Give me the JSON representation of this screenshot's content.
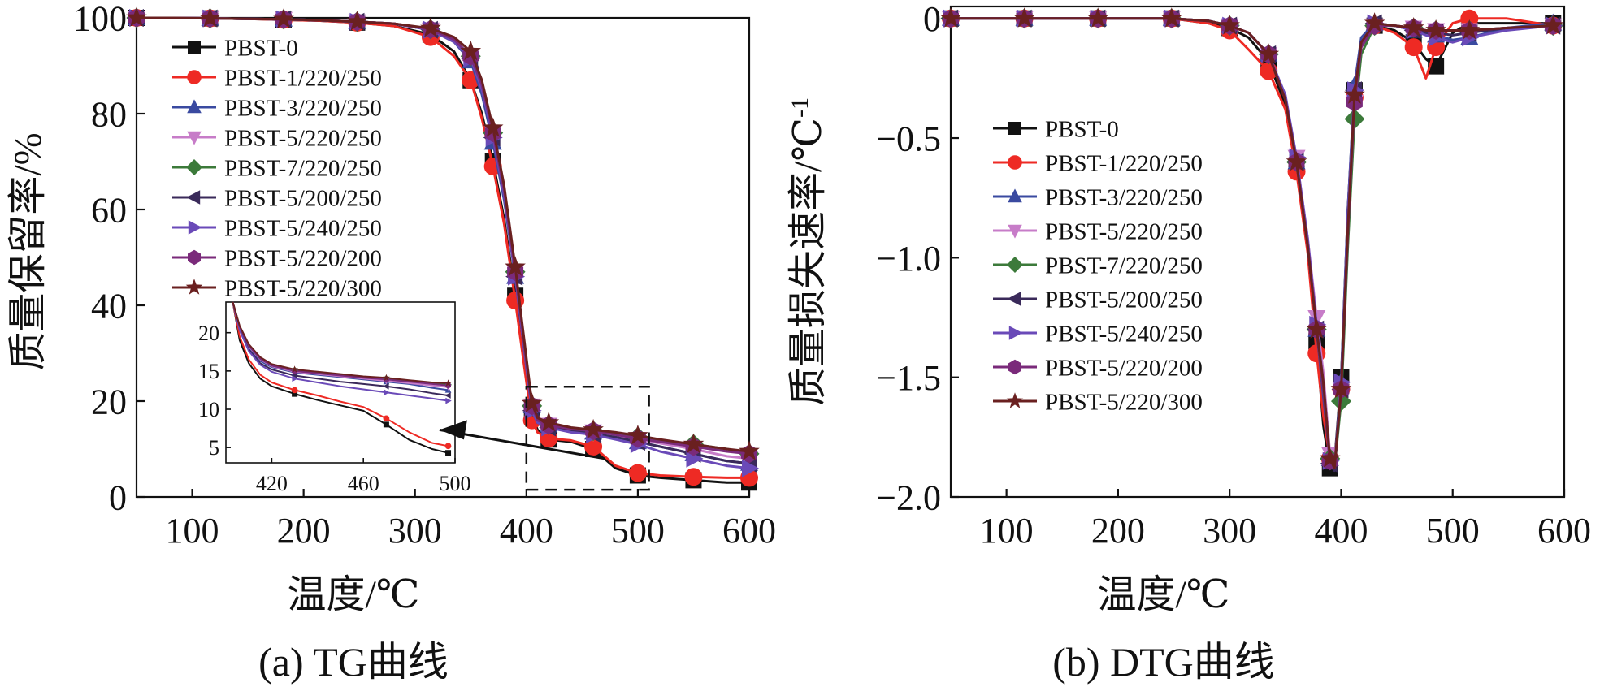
{
  "colors": {
    "PBST-0": "#111111",
    "PBST-1/220/250": "#ee2a24",
    "PBST-3/220/250": "#3a4aa0",
    "PBST-5/220/250": "#c77cc8",
    "PBST-7/220/250": "#3c7a3a",
    "PBST-5/200/250": "#3a2a5a",
    "PBST-5/240/250": "#6a4ab8",
    "PBST-5/220/200": "#7a2a7a",
    "PBST-5/220/300": "#6a2020"
  },
  "markers": {
    "PBST-0": "square",
    "PBST-1/220/250": "circle",
    "PBST-3/220/250": "triangle-up",
    "PBST-5/220/250": "triangle-down",
    "PBST-7/220/250": "diamond",
    "PBST-5/200/250": "triangle-left",
    "PBST-5/240/250": "triangle-right",
    "PBST-5/220/200": "hexagon",
    "PBST-5/220/300": "star"
  },
  "chart_data": [
    {
      "type": "line",
      "caption": "(a) TG曲线",
      "xlabel": "温度/℃",
      "ylabel": "质量保留率/%",
      "xlim": [
        50,
        600
      ],
      "ylim": [
        0,
        100
      ],
      "xticks": [
        100,
        200,
        300,
        400,
        500,
        600
      ],
      "yticks": [
        0,
        20,
        40,
        60,
        80,
        100
      ],
      "legend": "top-left",
      "x": [
        50,
        83,
        116,
        149,
        182,
        215,
        248,
        281,
        314,
        335,
        350,
        360,
        370,
        380,
        390,
        400,
        405,
        410,
        420,
        440,
        460,
        480,
        500,
        520,
        550,
        580,
        600
      ],
      "series": [
        {
          "name": "PBST-0",
          "values": [
            100,
            100,
            99.9,
            99.8,
            99.6,
            99.4,
            99,
            98.3,
            96.5,
            93,
            87,
            80,
            70,
            58,
            42,
            25,
            17,
            14,
            12,
            11.5,
            10,
            6,
            4.5,
            4,
            3.5,
            3,
            3
          ]
        },
        {
          "name": "PBST-1/220/250",
          "values": [
            100,
            100,
            99.9,
            99.8,
            99.6,
            99.4,
            99,
            98.3,
            96,
            92,
            87,
            79,
            69,
            57,
            41,
            24,
            16,
            13.5,
            12.2,
            11.8,
            10.5,
            6.5,
            5,
            4.5,
            4.2,
            4,
            4
          ]
        },
        {
          "name": "PBST-3/220/250",
          "values": [
            100,
            100,
            99.9,
            99.8,
            99.7,
            99.5,
            99.2,
            98.8,
            97.5,
            95,
            91,
            84,
            74,
            62,
            46,
            28,
            19,
            16,
            15,
            14,
            13.5,
            12.5,
            11.5,
            10.5,
            9,
            7.5,
            7
          ]
        },
        {
          "name": "PBST-5/220/250",
          "values": [
            100,
            100,
            99.9,
            99.8,
            99.7,
            99.5,
            99.2,
            98.8,
            97.5,
            95,
            92,
            86,
            76,
            64,
            47,
            28,
            19,
            16,
            15,
            14.2,
            13.6,
            12.8,
            12,
            11.2,
            10,
            8.5,
            8
          ]
        },
        {
          "name": "PBST-7/220/250",
          "values": [
            100,
            100,
            99.9,
            99.8,
            99.7,
            99.5,
            99.2,
            98.8,
            97.6,
            95.5,
            92,
            86,
            76,
            64,
            47,
            28,
            19,
            16,
            15,
            14.2,
            13.8,
            13.2,
            12.5,
            11.8,
            11,
            10,
            9
          ]
        },
        {
          "name": "PBST-5/200/250",
          "values": [
            100,
            100,
            99.9,
            99.8,
            99.7,
            99.5,
            99.2,
            98.8,
            97.5,
            95,
            91.5,
            85,
            75,
            63,
            46,
            27,
            18,
            15.5,
            14.5,
            13.8,
            13.2,
            12.5,
            11.5,
            10.5,
            9,
            7.5,
            7
          ]
        },
        {
          "name": "PBST-5/240/250",
          "values": [
            100,
            100,
            99.9,
            99.8,
            99.7,
            99.5,
            99.2,
            98.8,
            97.5,
            95,
            91.5,
            85,
            75,
            63,
            46,
            27,
            18,
            15.5,
            14.5,
            13.5,
            13,
            12,
            11,
            9.5,
            8,
            6.5,
            6
          ]
        },
        {
          "name": "PBST-5/220/200",
          "values": [
            100,
            100,
            99.9,
            99.8,
            99.7,
            99.5,
            99.2,
            98.8,
            97.6,
            95.5,
            92,
            86,
            76,
            64,
            47,
            28,
            19,
            16,
            15,
            14.2,
            13.8,
            13,
            12.2,
            11.5,
            10.5,
            9.5,
            9
          ]
        },
        {
          "name": "PBST-5/220/300",
          "values": [
            100,
            100,
            99.9,
            99.8,
            99.7,
            99.5,
            99.2,
            98.8,
            97.8,
            96,
            93,
            87,
            77,
            65,
            48,
            29,
            19.5,
            16.5,
            15.5,
            14.5,
            14,
            13.5,
            12.8,
            12,
            11,
            10,
            9.5
          ]
        }
      ],
      "inset": {
        "xlim": [
          400,
          500
        ],
        "ylim": [
          3,
          24
        ],
        "xticks": [
          420,
          460,
          500
        ],
        "yticks": [
          5,
          10,
          15,
          20
        ],
        "x": [
          403,
          406,
          410,
          415,
          420,
          430,
          440,
          450,
          460,
          470,
          480,
          490,
          497
        ],
        "series": [
          {
            "name": "PBST-0",
            "values": [
              24,
              19,
              16,
              14,
              13,
              12,
              11.2,
              10.5,
              9.8,
              8,
              6,
              4.8,
              4.3
            ]
          },
          {
            "name": "PBST-1/220/250",
            "values": [
              24,
              19.5,
              16.5,
              14.5,
              13.5,
              12.5,
              11.8,
              11,
              10.3,
              8.8,
              7,
              5.6,
              5.2
            ]
          },
          {
            "name": "PBST-3/220/250",
            "values": [
              24,
              20.5,
              18,
              16.3,
              15.5,
              14.8,
              14.5,
              14.2,
              13.9,
              13.6,
              13.3,
              12.8,
              12.5
            ]
          },
          {
            "name": "PBST-5/220/250",
            "values": [
              24,
              20.7,
              18.2,
              16.5,
              15.6,
              14.9,
              14.6,
              14.3,
              14,
              13.7,
              13.4,
              13.1,
              12.9
            ]
          },
          {
            "name": "PBST-7/220/250",
            "values": [
              24,
              20.8,
              18.3,
              16.6,
              15.7,
              15.1,
              14.8,
              14.5,
              14.2,
              14,
              13.7,
              13.4,
              13.2
            ]
          },
          {
            "name": "PBST-5/200/250",
            "values": [
              24,
              20.4,
              17.8,
              16,
              15.2,
              14.4,
              14,
              13.6,
              13.3,
              13,
              12.6,
              12.1,
              11.8
            ]
          },
          {
            "name": "PBST-5/240/250",
            "values": [
              24,
              20.3,
              17.6,
              15.8,
              14.9,
              14,
              13.5,
              13,
              12.6,
              12.2,
              11.8,
              11.4,
              11.1
            ]
          },
          {
            "name": "PBST-5/220/200",
            "values": [
              24,
              20.8,
              18.3,
              16.6,
              15.7,
              15,
              14.7,
              14.4,
              14.1,
              13.9,
              13.6,
              13.3,
              13.1
            ]
          },
          {
            "name": "PBST-5/220/300",
            "values": [
              24,
              20.9,
              18.5,
              16.8,
              15.9,
              15.2,
              14.9,
              14.6,
              14.3,
              14.1,
              13.8,
              13.5,
              13.4
            ]
          }
        ]
      }
    },
    {
      "type": "line",
      "caption": "(b) DTG曲线",
      "xlabel": "温度/℃",
      "ylabel": "质量损失速率/℃",
      "ylabel_sup": "-1",
      "xlim": [
        50,
        600
      ],
      "ylim": [
        -2.0,
        0.05
      ],
      "xticks": [
        100,
        200,
        300,
        400,
        500,
        600
      ],
      "yticks": [
        0,
        -0.5,
        -1.0,
        -1.5,
        -2.0
      ],
      "ytick_labels": [
        "0",
        "−0.5",
        "−1.0",
        "−1.5",
        "−2.0"
      ],
      "legend": "left",
      "x": [
        50,
        83,
        116,
        149,
        182,
        215,
        248,
        281,
        300,
        317,
        335,
        350,
        360,
        370,
        378,
        384,
        390,
        394,
        400,
        406,
        412,
        418,
        430,
        448,
        465,
        476,
        485,
        500,
        515,
        548,
        590
      ],
      "series": [
        {
          "name": "PBST-0",
          "values": [
            0,
            0,
            0,
            0,
            0,
            0,
            0,
            -0.02,
            -0.04,
            -0.08,
            -0.18,
            -0.36,
            -0.62,
            -0.95,
            -1.35,
            -1.7,
            -1.88,
            -1.86,
            -1.5,
            -0.8,
            -0.3,
            -0.1,
            -0.03,
            -0.05,
            -0.1,
            -0.17,
            -0.2,
            -0.06,
            -0.02,
            -0.02,
            -0.02
          ]
        },
        {
          "name": "PBST-1/220/250",
          "values": [
            0,
            0,
            0,
            0,
            0,
            0,
            0,
            -0.02,
            -0.05,
            -0.13,
            -0.22,
            -0.38,
            -0.64,
            -0.98,
            -1.4,
            -1.66,
            -1.84,
            -1.86,
            -1.55,
            -0.85,
            -0.33,
            -0.12,
            -0.03,
            -0.06,
            -0.12,
            -0.25,
            -0.12,
            -0.02,
            0,
            0,
            -0.03
          ]
        },
        {
          "name": "PBST-3/220/250",
          "values": [
            0,
            0,
            0,
            0,
            0,
            0,
            0,
            -0.01,
            -0.03,
            -0.06,
            -0.15,
            -0.34,
            -0.6,
            -0.95,
            -1.3,
            -1.58,
            -1.84,
            -1.87,
            -1.52,
            -0.8,
            -0.28,
            -0.08,
            -0.02,
            -0.03,
            -0.05,
            -0.06,
            -0.07,
            -0.09,
            -0.08,
            -0.04,
            -0.02
          ]
        },
        {
          "name": "PBST-5/220/250",
          "values": [
            0,
            0,
            0,
            0,
            0,
            0,
            0,
            -0.01,
            -0.03,
            -0.06,
            -0.15,
            -0.33,
            -0.58,
            -0.92,
            -1.25,
            -1.48,
            -1.82,
            -1.88,
            -1.55,
            -0.85,
            -0.35,
            -0.12,
            -0.03,
            -0.03,
            -0.04,
            -0.05,
            -0.05,
            -0.05,
            -0.05,
            -0.04,
            -0.03
          ]
        },
        {
          "name": "PBST-7/220/250",
          "values": [
            0,
            0,
            0,
            0,
            0,
            0,
            0,
            -0.01,
            -0.03,
            -0.06,
            -0.15,
            -0.34,
            -0.6,
            -0.95,
            -1.3,
            -1.55,
            -1.84,
            -1.88,
            -1.6,
            -0.95,
            -0.42,
            -0.15,
            -0.03,
            -0.03,
            -0.04,
            -0.05,
            -0.05,
            -0.05,
            -0.05,
            -0.04,
            -0.03
          ]
        },
        {
          "name": "PBST-5/200/250",
          "values": [
            0,
            0,
            0,
            0,
            0,
            0,
            0,
            -0.01,
            -0.03,
            -0.06,
            -0.15,
            -0.34,
            -0.6,
            -0.95,
            -1.3,
            -1.55,
            -1.86,
            -1.89,
            -1.55,
            -0.85,
            -0.3,
            -0.1,
            -0.02,
            -0.03,
            -0.05,
            -0.06,
            -0.06,
            -0.07,
            -0.06,
            -0.04,
            -0.03
          ]
        },
        {
          "name": "PBST-5/240/250",
          "values": [
            0,
            0,
            0,
            0,
            0,
            0,
            0,
            -0.01,
            -0.03,
            -0.06,
            -0.15,
            -0.32,
            -0.58,
            -0.92,
            -1.28,
            -1.52,
            -1.85,
            -1.88,
            -1.52,
            -0.82,
            -0.3,
            -0.1,
            -0.02,
            -0.03,
            -0.05,
            -0.07,
            -0.08,
            -0.1,
            -0.08,
            -0.05,
            -0.03
          ]
        },
        {
          "name": "PBST-5/220/200",
          "values": [
            0,
            0,
            0,
            0,
            0,
            0,
            0,
            -0.01,
            -0.03,
            -0.06,
            -0.15,
            -0.34,
            -0.6,
            -0.95,
            -1.3,
            -1.55,
            -1.85,
            -1.88,
            -1.55,
            -0.9,
            -0.35,
            -0.12,
            -0.03,
            -0.03,
            -0.04,
            -0.05,
            -0.05,
            -0.05,
            -0.05,
            -0.04,
            -0.03
          ]
        },
        {
          "name": "PBST-5/220/300",
          "values": [
            0,
            0,
            0,
            0,
            0,
            0,
            0,
            -0.01,
            -0.03,
            -0.06,
            -0.15,
            -0.34,
            -0.6,
            -0.95,
            -1.3,
            -1.52,
            -1.84,
            -1.88,
            -1.55,
            -0.88,
            -0.32,
            -0.1,
            -0.02,
            -0.03,
            -0.04,
            -0.05,
            -0.05,
            -0.05,
            -0.05,
            -0.04,
            -0.03
          ]
        }
      ]
    }
  ]
}
